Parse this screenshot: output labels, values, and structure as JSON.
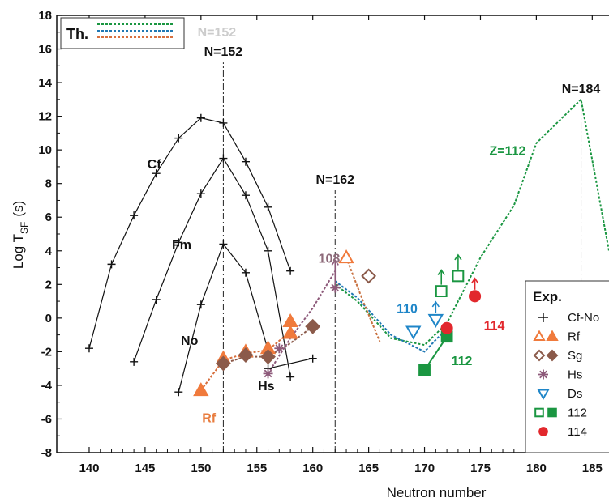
{
  "chart_data": {
    "type": "line",
    "xlabel": "Neutron number",
    "ylabel_main": "Log T",
    "ylabel_sub": "SF",
    "ylabel_unit": "(s)",
    "xlim": [
      137.1,
      186.5
    ],
    "ylim": [
      -8,
      18
    ],
    "xticks": [
      140,
      145,
      150,
      155,
      160,
      165,
      170,
      175,
      180,
      185
    ],
    "yticks": [
      -8,
      -6,
      -4,
      -2,
      0,
      2,
      4,
      6,
      8,
      10,
      12,
      14,
      16,
      18
    ],
    "grid": false,
    "theory_legend": {
      "title": "Th.",
      "colors": [
        "#1a9641",
        "#1f78b4",
        "#d7703f"
      ]
    },
    "reference_lines": [
      {
        "x": 152,
        "label": "N=152",
        "ghost_label": "N=152",
        "y0": -8,
        "y1": 15.2
      },
      {
        "x": 162,
        "label": "N=162",
        "y0": -8,
        "y1": 7.6
      },
      {
        "x": 184,
        "label": "N=184",
        "y0": -8,
        "y1": 13
      }
    ],
    "experimental_even_even": [
      {
        "name": "Cf",
        "x": [
          140,
          142,
          144,
          146,
          148,
          150,
          152,
          154,
          156,
          158
        ],
        "y": [
          -1.8,
          3.2,
          6.1,
          8.6,
          10.7,
          11.9,
          11.6,
          9.3,
          6.6,
          2.8
        ]
      },
      {
        "name": "Fm",
        "x": [
          144,
          146,
          148,
          150,
          152,
          154,
          156,
          158
        ],
        "y": [
          -2.6,
          1.1,
          4.5,
          7.4,
          9.5,
          7.3,
          4.0,
          -3.5
        ]
      },
      {
        "name": "No",
        "x": [
          148,
          150,
          152,
          154,
          156
        ],
        "y": [
          -4.4,
          0.8,
          4.4,
          2.7,
          -1.9
        ]
      },
      {
        "name": "Hs",
        "x": [
          156,
          160
        ],
        "y": [
          -3.0,
          -2.4
        ]
      }
    ],
    "experimental_series": [
      {
        "name": "Rf",
        "open_x": [
          163
        ],
        "open_y": [
          3.6
        ],
        "filled_x": [
          150,
          152,
          154,
          156,
          158,
          158
        ],
        "filled_y": [
          -4.3,
          -2.4,
          -2.0,
          -1.8,
          -0.9,
          -0.2
        ],
        "color": "#f07a3c"
      },
      {
        "name": "Sg",
        "open_x": [
          165
        ],
        "open_y": [
          2.5
        ],
        "filled_x": [
          152,
          154,
          156,
          160
        ],
        "filled_y": [
          -2.7,
          -2.2,
          -2.3,
          -0.5
        ],
        "color": "#8b5a4a"
      },
      {
        "name": "Hs",
        "filled_x": [
          156,
          157,
          162
        ],
        "filled_y": [
          -3.3,
          -1.8,
          1.8
        ],
        "color": "#8d5a7a"
      },
      {
        "name": "Ds",
        "open_x": [
          169,
          171
        ],
        "open_y": [
          -0.8,
          -0.1
        ],
        "color": "#1f86c8"
      },
      {
        "name": "112",
        "open_x": [
          171.5,
          173
        ],
        "open_y": [
          1.6,
          2.5
        ],
        "filled_x": [
          170,
          172
        ],
        "filled_y": [
          -3.1,
          -1.1
        ],
        "color": "#1a9641"
      },
      {
        "name": "114",
        "filled_x": [
          172,
          174.5
        ],
        "filled_y": [
          -0.6,
          1.3
        ],
        "color": "#e2282d"
      }
    ],
    "theory_curves": [
      {
        "name": "Z=112",
        "color": "#1a9641",
        "x": [
          162,
          164,
          167,
          170,
          172,
          175,
          178,
          180,
          184,
          186.5
        ],
        "y": [
          2.0,
          1.0,
          -1.2,
          -1.6,
          -0.3,
          3.6,
          6.7,
          10.4,
          13.0,
          4.0
        ]
      },
      {
        "name": "110",
        "color": "#1f78b4",
        "x": [
          162,
          164,
          167,
          170,
          172
        ],
        "y": [
          2.2,
          1.2,
          -1.0,
          -2.0,
          -0.6
        ]
      },
      {
        "name": "Rf theory",
        "color": "#d7703f",
        "x": [
          150,
          152,
          154,
          156,
          158
        ],
        "y": [
          -4.3,
          -2.5,
          -2.1,
          -1.9,
          -0.8
        ]
      },
      {
        "name": "Sg theory",
        "color": "#8b5a4a",
        "x": [
          152,
          154,
          156,
          158,
          160
        ],
        "y": [
          -2.7,
          -2.3,
          -2.3,
          -1.5,
          -0.5
        ]
      },
      {
        "name": "108",
        "color": "#8d5a7a",
        "x": [
          156,
          158,
          160,
          162
        ],
        "y": [
          -3.3,
          -1.2,
          0.6,
          2.8
        ]
      },
      {
        "name": "Rf tail",
        "color": "#c8703f",
        "x": [
          163,
          164.5,
          166
        ],
        "y": [
          3.6,
          1.0,
          -1.4
        ]
      }
    ],
    "annotations": [
      {
        "text": "Cf",
        "x": 145.2,
        "y": 8.9,
        "color": "#111"
      },
      {
        "text": "Fm",
        "x": 147.4,
        "y": 4.1,
        "color": "#111"
      },
      {
        "text": "No",
        "x": 148.2,
        "y": -1.6,
        "color": "#111"
      },
      {
        "text": "Hs",
        "x": 155.1,
        "y": -4.3,
        "color": "#111"
      },
      {
        "text": "Rf",
        "x": 150.1,
        "y": -6.2,
        "color": "#e87c3e"
      },
      {
        "text": "108",
        "x": 160.5,
        "y": 3.3,
        "color": "#8d6a7a"
      },
      {
        "text": "110",
        "x": 167.5,
        "y": 0.3,
        "color": "#1f86c8"
      },
      {
        "text": "Z=112",
        "x": 175.8,
        "y": 9.7,
        "color": "#1a9641"
      },
      {
        "text": "112",
        "x": 172.4,
        "y": -2.8,
        "color": "#1a9641"
      },
      {
        "text": "114",
        "x": 175.3,
        "y": -0.7,
        "color": "#e2282d"
      }
    ],
    "legend": {
      "title": "Exp.",
      "placement": "bottom-right",
      "entries": [
        "Cf-No",
        "Rf",
        "Sg",
        "Hs",
        "Ds",
        "112",
        "114"
      ]
    }
  }
}
